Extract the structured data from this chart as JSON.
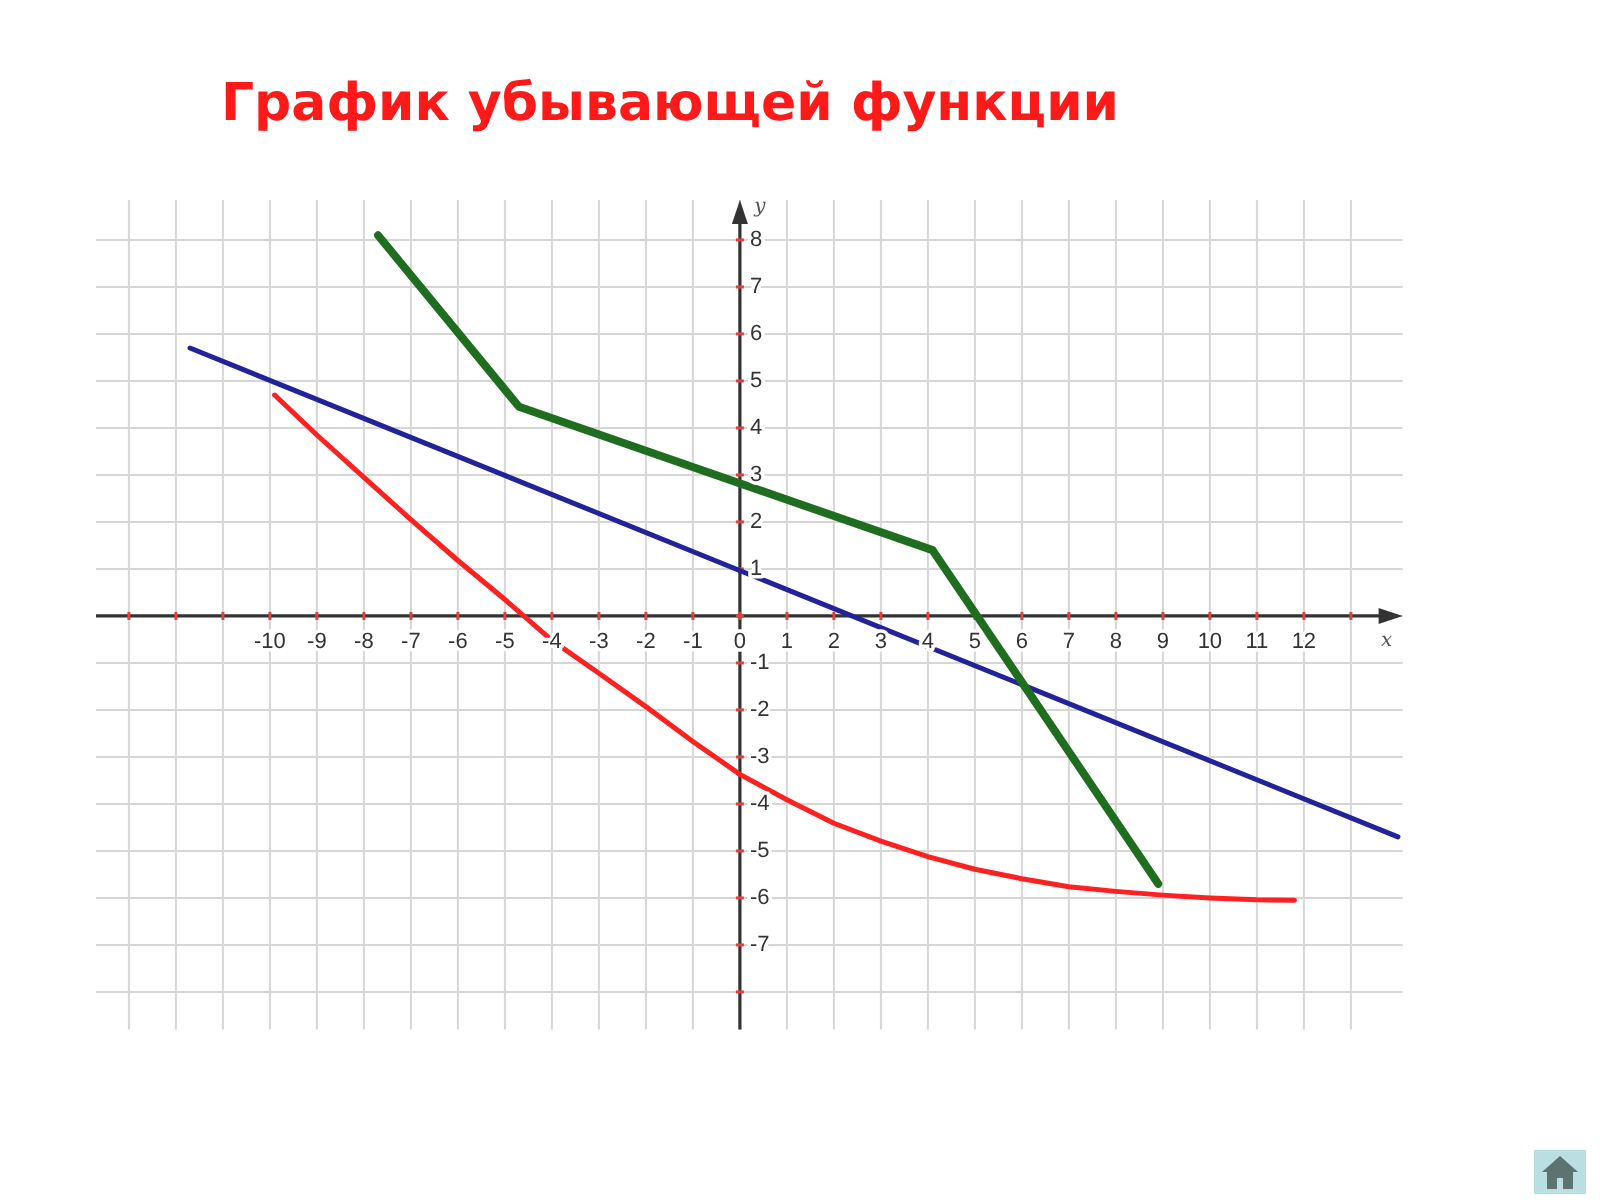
{
  "chart_data": {
    "type": "line",
    "title": "График убывающей функции",
    "xlabel": "x",
    "ylabel": "y",
    "xlim": [
      -13.7,
      14.1
    ],
    "ylim": [
      -8.8,
      8.85
    ],
    "xticks": [
      {
        "value": -13,
        "label": null
      },
      {
        "value": -12,
        "label": null
      },
      {
        "value": -11,
        "label": null
      },
      -10,
      -9,
      -8,
      -7,
      -6,
      -5,
      -4,
      -3,
      -2,
      -1,
      0,
      1,
      2,
      3,
      4,
      5,
      6,
      7,
      8,
      9,
      10,
      11,
      12,
      {
        "value": 13,
        "label": null
      }
    ],
    "yticks": [
      {
        "value": -8,
        "label": null
      },
      -7,
      -6,
      -5,
      -4,
      -3,
      -2,
      -1,
      {
        "value": 0,
        "label": null
      },
      1,
      2,
      3,
      4,
      5,
      6,
      7,
      8
    ],
    "grid": true,
    "series": [
      {
        "color": "#22229a",
        "x": [
          -11.7,
          14
        ],
        "values": [
          5.7,
          -4.7
        ]
      },
      {
        "color": "#1f6e1f",
        "x": [
          -7.7,
          -4.7,
          4.1,
          8.9
        ],
        "values": [
          8.1,
          4.45,
          1.4,
          -5.7
        ]
      },
      {
        "color": "#ff2020",
        "x": [
          -9.9,
          -9,
          -8,
          -7,
          -6,
          -5,
          -4,
          -3,
          -2,
          -1,
          0,
          1,
          2,
          3,
          4,
          5,
          6,
          7,
          8,
          9,
          10,
          11,
          11.8
        ],
        "values": [
          4.7,
          3.85,
          2.95,
          2.05,
          1.18,
          0.35,
          -0.52,
          -1.22,
          -1.93,
          -2.67,
          -3.37,
          -3.91,
          -4.41,
          -4.79,
          -5.12,
          -5.39,
          -5.59,
          -5.76,
          -5.86,
          -5.94,
          -6.0,
          -6.04,
          -6.05
        ]
      }
    ]
  }
}
